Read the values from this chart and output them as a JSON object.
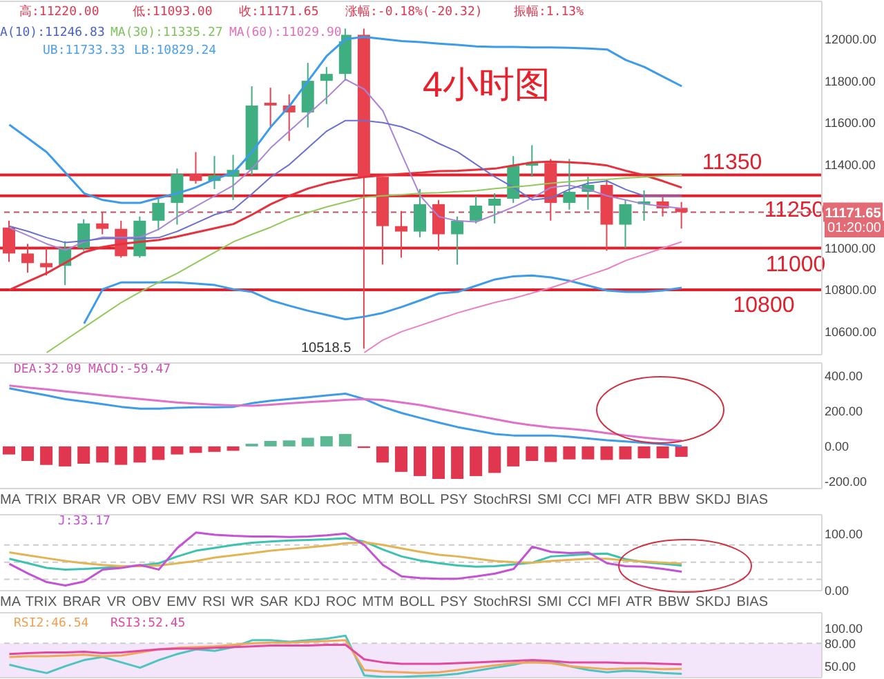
{
  "chart_data": [
    {
      "type": "candlestick",
      "categories": [
        null,
        null,
        null,
        null,
        null,
        null,
        null,
        null,
        null,
        null,
        null,
        null,
        null,
        null,
        null,
        null,
        null,
        null,
        null,
        null,
        null,
        null,
        null,
        null,
        null,
        null,
        null,
        null,
        null,
        null,
        null,
        null,
        null,
        null,
        null,
        null,
        null,
        null,
        null,
        null,
        null,
        null,
        null,
        null
      ],
      "ohlc": [
        [
          11098,
          11131,
          10934,
          10974
        ],
        [
          10974,
          11020,
          10882,
          10928
        ],
        [
          10928,
          11000,
          10869,
          10908
        ],
        [
          10915,
          11033,
          10823,
          11000
        ],
        [
          11000,
          11138,
          10987,
          11118
        ],
        [
          11118,
          11170,
          11066,
          11092
        ],
        [
          11092,
          11131,
          10954,
          10961
        ],
        [
          10961,
          11151,
          10954,
          11131
        ],
        [
          11131,
          11243,
          11085,
          11216
        ],
        [
          11216,
          11380,
          11112,
          11354
        ],
        [
          11354,
          11459,
          11308,
          11321
        ],
        [
          11321,
          11440,
          11282,
          11348
        ],
        [
          11341,
          11446,
          11230,
          11374
        ],
        [
          11374,
          11774,
          11348,
          11682
        ],
        [
          11695,
          11767,
          11577,
          11682
        ],
        [
          11682,
          11735,
          11512,
          11649
        ],
        [
          11649,
          11886,
          11577,
          11800
        ],
        [
          11800,
          11866,
          11689,
          11833
        ],
        [
          11833,
          12050,
          11800,
          12020
        ],
        [
          12020,
          12050,
          10518.5,
          11341
        ],
        [
          11341,
          11341,
          10921,
          11105
        ],
        [
          11105,
          11177,
          10954,
          11079
        ],
        [
          11079,
          11282,
          11052,
          11210
        ],
        [
          11210,
          11230,
          10987,
          11066
        ],
        [
          11066,
          11151,
          10921,
          11131
        ],
        [
          11131,
          11249,
          11118,
          11203
        ],
        [
          11203,
          11262,
          11118,
          11236
        ],
        [
          11236,
          11440,
          11216,
          11394
        ],
        [
          11394,
          11492,
          11341,
          11407
        ],
        [
          11407,
          11426,
          11131,
          11216
        ],
        [
          11216,
          11426,
          11184,
          11269
        ],
        [
          11269,
          11341,
          11184,
          11302
        ],
        [
          11302,
          11328,
          10987,
          11112
        ],
        [
          11112,
          11230,
          11000,
          11210
        ],
        [
          11210,
          11276,
          11131,
          11223
        ],
        [
          11223,
          11249,
          11151,
          11190
        ],
        [
          11192,
          11220,
          11093,
          11171.65
        ],
        null,
        null,
        null,
        null,
        null,
        null,
        null
      ],
      "colors": [
        "#e8424f",
        "#e8424f",
        "#e8424f",
        "#3fae80",
        "#3fae80",
        "#e8424f",
        "#e8424f",
        "#3fae80",
        "#3fae80",
        "#3fae80",
        "#e8424f",
        "#3fae80",
        "#3fae80",
        "#3fae80",
        "#e8424f",
        "#e8424f",
        "#3fae80",
        "#3fae80",
        "#3fae80",
        "#e8424f",
        "#e8424f",
        "#e8424f",
        "#3fae80",
        "#e8424f",
        "#3fae80",
        "#3fae80",
        "#3fae80",
        "#3fae80",
        "#3fae80",
        "#e8424f",
        "#3fae80",
        "#3fae80",
        "#e8424f",
        "#3fae80",
        "#3fae80",
        "#e8424f",
        "#e8424f",
        null,
        null,
        null,
        null,
        null,
        null,
        null
      ],
      "series": [
        {
          "type": "line",
          "color": "#3d9be9",
          "values": [
            11590,
            11525,
            11459,
            11361,
            11262,
            11230,
            11216,
            11216,
            11240,
            11262,
            11290,
            11330,
            11361,
            11460,
            11580,
            11680,
            11800,
            11920,
            12000,
            12010,
            12000,
            11990,
            11985,
            11978,
            11972,
            11965,
            11962,
            11962,
            11960,
            11960,
            11958,
            11955,
            11950,
            11900,
            11866,
            11820,
            11774,
            null,
            null,
            null,
            null,
            null,
            null,
            null
          ]
        },
        {
          "type": "line",
          "color": "#3d9be9",
          "values": [
            null,
            null,
            null,
            null,
            10639,
            10803,
            10836,
            10836,
            10836,
            10836,
            10830,
            10823,
            10803,
            10790,
            10750,
            10724,
            10700,
            10680,
            10659,
            10672,
            10690,
            10718,
            10750,
            10783,
            10790,
            10820,
            10850,
            10865,
            10869,
            10860,
            10843,
            10820,
            10797,
            10790,
            10790,
            10797,
            10810,
            null,
            null,
            null,
            null,
            null,
            null,
            null
          ]
        },
        {
          "type": "line",
          "color": "#e8303c",
          "values": [
            10800,
            10840,
            10880,
            10930,
            10980,
            11005,
            11020,
            11030,
            11039,
            11055,
            11075,
            11095,
            11115,
            11160,
            11210,
            11250,
            11285,
            11310,
            11328,
            11340,
            11348,
            11355,
            11361,
            11368,
            11370,
            11375,
            11380,
            11395,
            11410,
            11413,
            11410,
            11405,
            11395,
            11370,
            11348,
            11320,
            11289,
            null,
            null,
            null,
            null,
            null,
            null,
            null
          ]
        },
        {
          "type": "line",
          "color": "#a984d4",
          "values": [
            11098,
            11060,
            11020,
            10990,
            11030,
            11052,
            11050,
            11052,
            11090,
            11150,
            11200,
            11250,
            11300,
            11380,
            11480,
            11560,
            11640,
            11720,
            11807,
            11760,
            11656,
            11450,
            11250,
            11150,
            11130,
            11125,
            11160,
            11197,
            11240,
            11290,
            11300,
            11280,
            11250,
            11230,
            11210,
            11200,
            11190,
            null,
            null,
            null,
            null,
            null,
            null,
            null
          ]
        },
        {
          "type": "line",
          "color": "#6a6fd0",
          "values": [
            11105,
            11080,
            11050,
            11026,
            11035,
            11045,
            11046,
            11046,
            11050,
            11080,
            11120,
            11160,
            11185,
            11260,
            11340,
            11400,
            11480,
            11560,
            11610,
            11610,
            11600,
            11580,
            11545,
            11500,
            11460,
            11400,
            11340,
            11290,
            11230,
            11240,
            11282,
            11310,
            11321,
            11280,
            11249,
            11249,
            11249,
            null,
            null,
            null,
            null,
            null,
            null,
            null
          ]
        },
        {
          "type": "line",
          "color": "#92c85a",
          "values": [
            null,
            null,
            10500,
            10560,
            10620,
            10680,
            10740,
            10790,
            10836,
            10880,
            10930,
            10980,
            11030,
            11066,
            11100,
            11140,
            11170,
            11197,
            11220,
            11243,
            11250,
            11255,
            11262,
            11265,
            11270,
            11275,
            11285,
            11292,
            11300,
            11310,
            11318,
            11325,
            11328,
            11335,
            11340,
            11345,
            11348,
            null,
            null,
            null,
            null,
            null,
            null,
            null
          ]
        },
        {
          "type": "line",
          "color": "#ea80c0",
          "values": [
            null,
            null,
            null,
            null,
            null,
            null,
            null,
            null,
            null,
            null,
            null,
            null,
            null,
            null,
            null,
            null,
            null,
            null,
            null,
            10500,
            10560,
            10600,
            10630,
            10660,
            10690,
            10715,
            10740,
            10760,
            10785,
            10810,
            10840,
            10870,
            10900,
            10940,
            10970,
            11000,
            11030,
            null,
            null,
            null,
            null,
            null,
            null,
            null
          ]
        }
      ],
      "ylim": [
        10490,
        12180
      ],
      "yticks": [
        {
          "value": 10600,
          "label": "10600.00"
        },
        {
          "value": 10800,
          "label": "10800.00"
        },
        {
          "value": 11000,
          "label": "11000.00"
        },
        {
          "value": 11400,
          "label": "11400.00"
        },
        {
          "value": 11600,
          "label": "11600.00"
        },
        {
          "value": 11800,
          "label": "11800.00"
        },
        {
          "value": 12000,
          "label": "12000.00"
        }
      ],
      "tick_labels": "y",
      "ref_lines": [
        {
          "axis": "y",
          "value": 11350,
          "label": "11350",
          "color": "#e0202c"
        },
        {
          "axis": "y",
          "value": 11250,
          "label": "11250",
          "color": "#e0202c"
        },
        {
          "axis": "y",
          "value": 11000,
          "label": "11000",
          "color": "#e0202c"
        },
        {
          "axis": "y",
          "value": 10800,
          "label": "10800",
          "color": "#e0202c"
        },
        {
          "axis": "y",
          "value": 11171.65,
          "label": "11171.65",
          "color": "#c05060",
          "line_style": "dashed"
        }
      ],
      "annotations": [
        "高:11220.00",
        "低:11093.00",
        "收:11171.65",
        "涨幅:-0.18%(-20.32)",
        "振幅:1.13%",
        "A(10):11246.83",
        "MA(30):11335.27",
        "MA(60):11029.90",
        "UB:11733.33",
        "LB:10829.24",
        "4小时图",
        "10518.5",
        "01:20:00"
      ]
    },
    {
      "type": "bar",
      "categories": [
        null,
        null,
        null,
        null,
        null,
        null,
        null,
        null,
        null,
        null,
        null,
        null,
        null,
        null,
        null,
        null,
        null,
        null,
        null,
        null,
        null,
        null,
        null,
        null,
        null,
        null,
        null,
        null,
        null,
        null,
        null,
        null,
        null,
        null,
        null,
        null,
        null,
        null,
        null,
        null,
        null,
        null,
        null,
        null
      ],
      "series": [
        {
          "type": "bar",
          "values": [
            -46,
            -83,
            -105,
            -114,
            -99,
            -92,
            -105,
            -92,
            -77,
            -46,
            -37,
            -31,
            -25,
            15,
            31,
            34,
            49,
            58,
            71,
            -9,
            -92,
            -145,
            -169,
            -185,
            -185,
            -169,
            -151,
            -114,
            -83,
            -89,
            -74,
            -74,
            -77,
            -74,
            -68,
            -68,
            -59.47,
            null,
            null,
            null,
            null,
            null,
            null,
            null
          ],
          "colors": [
            "#e0364f",
            "#e0364f",
            "#e0364f",
            "#e0364f",
            "#e0364f",
            "#e0364f",
            "#e0364f",
            "#e0364f",
            "#e0364f",
            "#e0364f",
            "#e0364f",
            "#e0364f",
            "#e0364f",
            "#5cb892",
            "#5cb892",
            "#5cb892",
            "#5cb892",
            "#5cb892",
            "#5cb892",
            "#e0364f",
            "#e0364f",
            "#e0364f",
            "#e0364f",
            "#e0364f",
            "#e0364f",
            "#e0364f",
            "#e0364f",
            "#e0364f",
            "#e0364f",
            "#e0364f",
            "#e0364f",
            "#e0364f",
            "#e0364f",
            "#e0364f",
            "#e0364f",
            "#e0364f",
            "#e0364f",
            null,
            null,
            null,
            null,
            null,
            null,
            null
          ]
        },
        {
          "type": "line",
          "color": "#3d9be9",
          "values": [
            331,
            310,
            290,
            269,
            255,
            240,
            225,
            215,
            215,
            220,
            223,
            223,
            225,
            246,
            260,
            270,
            280,
            290,
            300,
            270,
            225,
            190,
            162,
            135,
            110,
            90,
            70,
            62,
            62,
            62,
            55,
            45,
            35,
            28,
            20,
            12,
            2,
            null,
            null,
            null,
            null,
            null,
            null,
            null
          ]
        },
        {
          "type": "line",
          "color": "#e070c8",
          "values": [
            346,
            335,
            325,
            313,
            302,
            290,
            280,
            270,
            260,
            250,
            243,
            237,
            233,
            231,
            237,
            245,
            252,
            258,
            265,
            269,
            265,
            250,
            235,
            215,
            195,
            175,
            155,
            135,
            120,
            108,
            100,
            90,
            75,
            62,
            50,
            40,
            32.09,
            null,
            null,
            null,
            null,
            null,
            null,
            null
          ]
        }
      ],
      "ylim": [
        -240,
        475
      ],
      "yticks": [
        {
          "value": -200,
          "label": "-200.00"
        },
        {
          "value": 0,
          "label": "0.00"
        },
        {
          "value": 200,
          "label": "200.00"
        },
        {
          "value": 400,
          "label": "400.00"
        }
      ],
      "tick_labels": "y",
      "annotations": [
        "DEA:32.09",
        "MACD:-59.47",
        "MA TRIX BRAR VR OBV EMV RSI WR SAR KDJ ROC MTM BOLL PSY StochRSI SMI CCI MFI ATR BBW SKDJ BIAS"
      ]
    },
    {
      "type": "line",
      "categories": [
        null,
        null,
        null,
        null,
        null,
        null,
        null,
        null,
        null,
        null,
        null,
        null,
        null,
        null,
        null,
        null,
        null,
        null,
        null,
        null,
        null,
        null,
        null,
        null,
        null,
        null,
        null,
        null,
        null,
        null,
        null,
        null,
        null,
        null,
        null,
        null,
        null,
        null,
        null,
        null,
        null,
        null,
        null,
        null
      ],
      "series": [
        {
          "color": "#3cc2b0",
          "values": [
            56,
            48,
            40,
            37,
            38,
            40,
            42,
            44,
            48,
            60,
            70,
            75,
            80,
            84,
            86,
            88,
            89,
            90,
            92,
            86,
            72,
            60,
            53,
            48,
            44,
            42,
            43,
            46,
            49,
            60,
            62,
            64,
            65,
            55,
            50,
            47,
            44,
            null,
            null,
            null,
            null,
            null,
            null,
            null
          ]
        },
        {
          "color": "#e2b455",
          "values": [
            67,
            62,
            57,
            52,
            48,
            45,
            43,
            43,
            44,
            48,
            52,
            58,
            62,
            66,
            70,
            73,
            76,
            79,
            83,
            85,
            80,
            74,
            68,
            63,
            60,
            56,
            52,
            50,
            49,
            52,
            54,
            56,
            56,
            53,
            51,
            49,
            47.52,
            null,
            null,
            null,
            null,
            null,
            null,
            null
          ]
        },
        {
          "color": "#c452d4",
          "values": [
            47,
            30,
            15,
            9,
            16,
            37,
            40,
            45,
            37,
            75,
            102,
            98,
            96,
            95,
            95,
            94,
            95,
            97,
            100,
            80,
            45,
            25,
            22,
            21,
            21,
            25,
            30,
            38,
            77,
            68,
            66,
            67,
            48,
            43,
            42,
            38,
            33.17,
            null,
            null,
            null,
            null,
            null,
            null,
            null
          ]
        }
      ],
      "ylim": [
        0,
        133
      ],
      "yticks": [
        {
          "value": 0,
          "label": "0.00"
        },
        {
          "value": 100,
          "label": "100.00"
        }
      ],
      "tick_labels": "y",
      "ref_lines": [
        {
          "axis": "y",
          "value": 20,
          "color": "#cccccc",
          "line_style": "dashed"
        },
        {
          "axis": "y",
          "value": 50,
          "color": "#cccccc",
          "line_style": "dashed"
        },
        {
          "axis": "y",
          "value": 80,
          "color": "#cccccc",
          "line_style": "dashed"
        }
      ],
      "annotations": [
        "J:33.17",
        "MA TRIX BRAR VR OBV EMV RSI WR SAR KDJ ROC MTM BOLL PSY StochRSI SMI CCI MFI ATR BBW SKDJ BIAS"
      ]
    },
    {
      "type": "line",
      "categories": [
        null,
        null,
        null,
        null,
        null,
        null,
        null,
        null,
        null,
        null,
        null,
        null,
        null,
        null,
        null,
        null,
        null,
        null,
        null,
        null,
        null,
        null,
        null,
        null,
        null,
        null,
        null,
        null,
        null,
        null,
        null,
        null,
        null,
        null,
        null,
        null,
        null,
        null,
        null,
        null,
        null,
        null,
        null,
        null
      ],
      "series": [
        {
          "color": "#4cc4c0",
          "values": [
            52,
            46,
            41,
            50,
            58,
            62,
            55,
            48,
            58,
            66,
            72,
            70,
            75,
            84,
            84,
            82,
            84,
            86,
            90,
            38,
            36,
            36,
            37,
            38,
            40,
            44,
            48,
            52,
            57,
            56,
            50,
            45,
            42,
            44,
            43,
            41,
            40,
            null,
            null,
            null,
            null,
            null,
            null,
            null
          ]
        },
        {
          "color": "#f0a858",
          "values": [
            62,
            63,
            63,
            64,
            65,
            63,
            64,
            68,
            72,
            74,
            75,
            76,
            78,
            80,
            81,
            81,
            82,
            83,
            84,
            45,
            43,
            42,
            41,
            42,
            45,
            48,
            51,
            54,
            55,
            54,
            50,
            48,
            46,
            47,
            47,
            46,
            46.54,
            null,
            null,
            null,
            null,
            null,
            null,
            null
          ]
        },
        {
          "color": "#e4479e",
          "values": [
            66,
            67,
            68,
            68,
            69,
            67,
            68,
            70,
            72,
            73,
            73,
            74,
            75,
            76,
            77,
            77,
            77,
            78,
            78,
            59,
            55,
            53,
            53,
            53,
            54,
            55,
            56,
            57,
            58,
            57,
            55,
            55,
            55,
            54,
            54,
            53,
            52.45,
            null,
            null,
            null,
            null,
            null,
            null,
            null
          ]
        }
      ],
      "ylim": [
        35,
        120
      ],
      "yticks": [
        {
          "value": 50,
          "label": "50.00"
        },
        {
          "value": 80,
          "label": "80.00"
        },
        {
          "value": 100,
          "label": "100.00"
        }
      ],
      "tick_labels": "y",
      "ref_lines": [
        {
          "axis": "y",
          "value": 80,
          "color": "#cccccc",
          "line_style": "dashed"
        }
      ],
      "bands": [
        {
          "axis": "y",
          "from": 35,
          "to": 80,
          "color": "#f3e6fb"
        }
      ],
      "annotations": [
        "RSI2:46.54",
        "RSI3:52.45"
      ]
    }
  ]
}
